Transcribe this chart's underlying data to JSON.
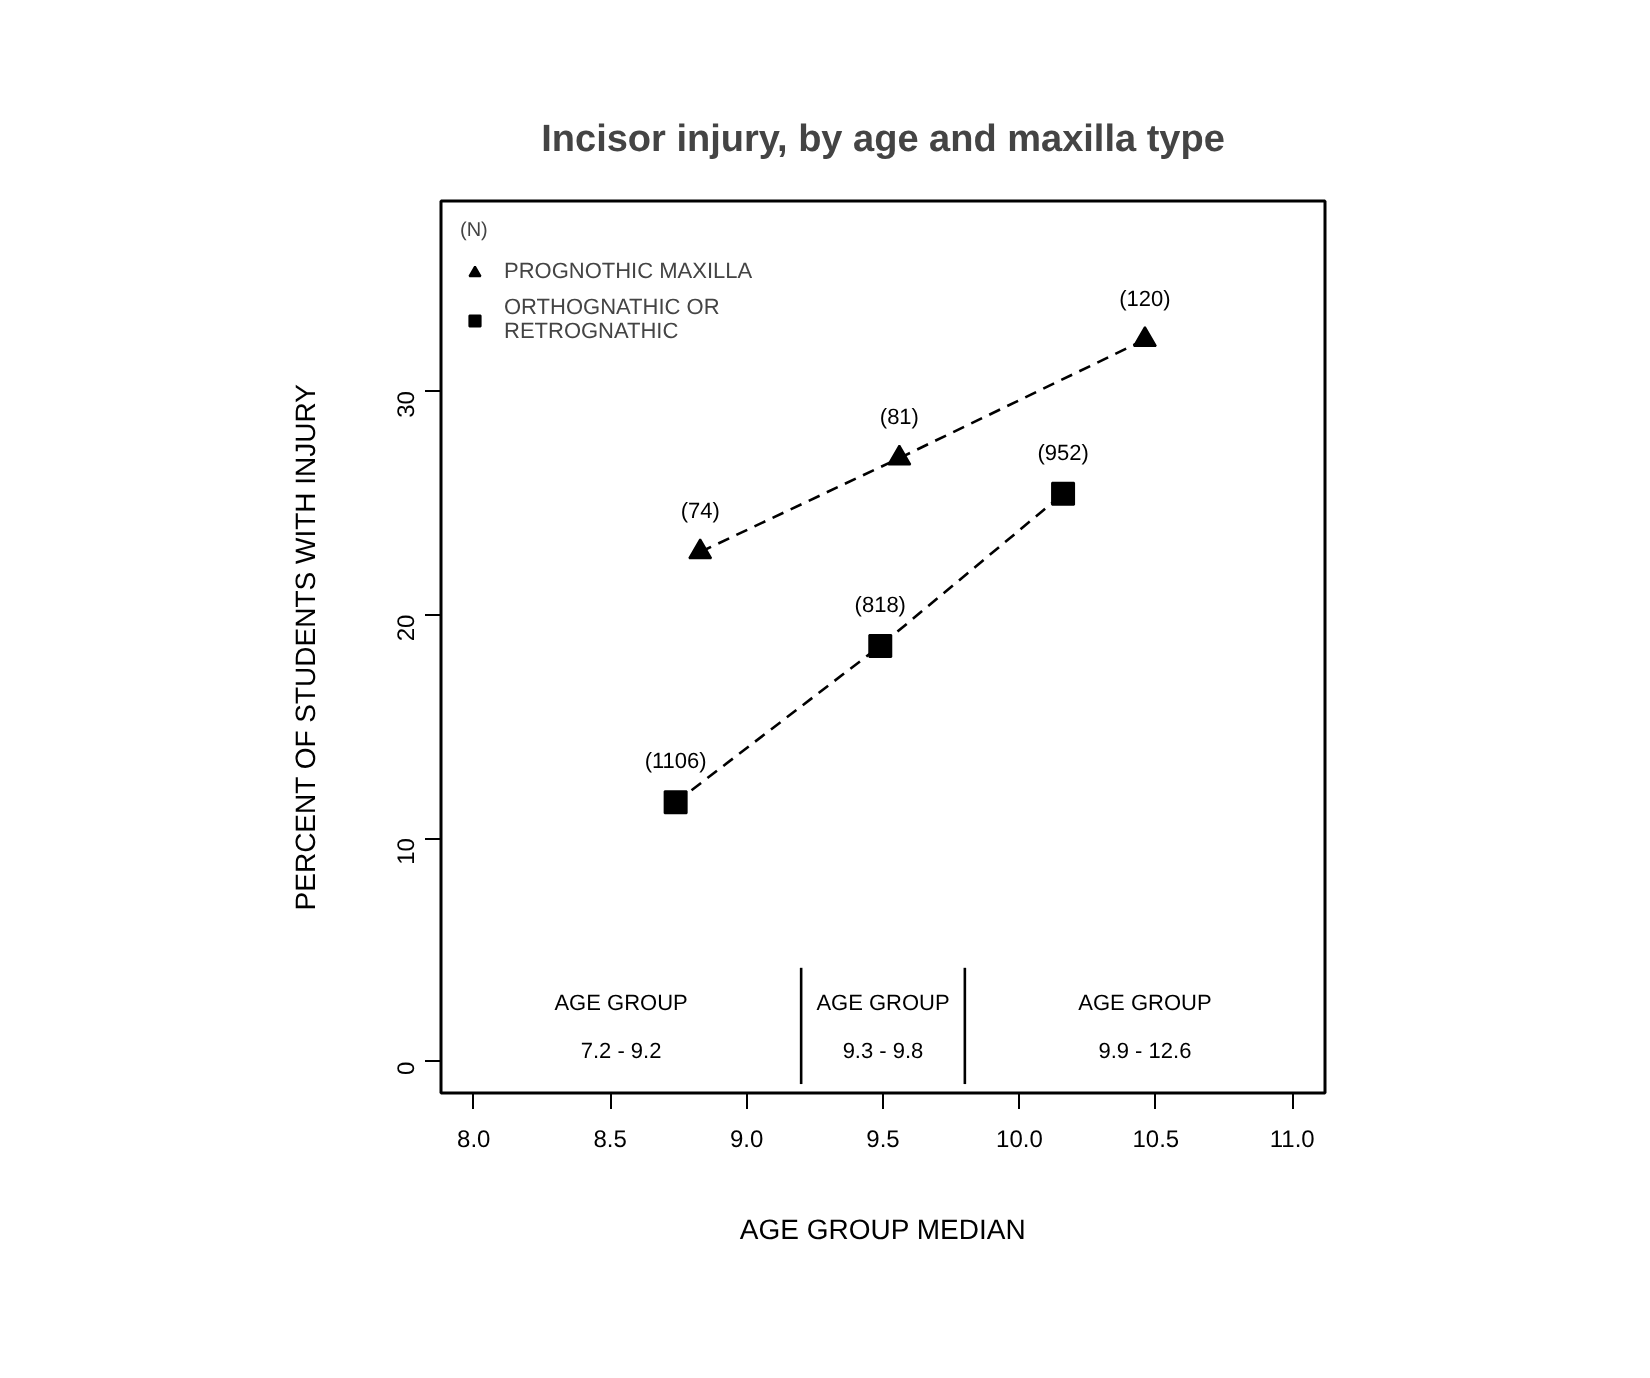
{
  "chart_data": {
    "type": "line",
    "title": "Incisor injury, by age and maxilla type",
    "xlabel": "AGE GROUP MEDIAN",
    "ylabel": "PERCENT OF STUDENTS WITH INJURY",
    "legend_title": "(N)",
    "legend": "top left",
    "line_style": "dashed",
    "grid": false,
    "xlim": [
      7.88,
      11.12
    ],
    "ylim": [
      -1.4,
      38.5
    ],
    "xticks": [
      {
        "value": 8,
        "label": "8.0"
      },
      {
        "value": 8.5,
        "label": "8.5"
      },
      {
        "value": 9,
        "label": "9.0"
      },
      {
        "value": 9.5,
        "label": "9.5"
      },
      {
        "value": 10,
        "label": "10.0"
      },
      {
        "value": 10.5,
        "label": "10.5"
      },
      {
        "value": 11,
        "label": "11.0"
      }
    ],
    "yticks": [
      0,
      10,
      20,
      30
    ],
    "series": [
      {
        "name": "PROGNOTHIC MAXILLA",
        "color": "#000000",
        "marker": "triangle",
        "x": [
          8.83,
          9.56,
          10.46
        ],
        "values": [
          22.8,
          27.0,
          32.3
        ]
      },
      {
        "name": "ORTHOGNATHIC OR\nRETROGNATHIC",
        "color": "#000000",
        "marker": "square",
        "x": [
          8.74,
          9.49,
          10.16
        ],
        "values": [
          11.6,
          18.6,
          25.4
        ]
      }
    ],
    "ref_lines": [
      {
        "axis": "x",
        "value": 9.2,
        "label": null
      },
      {
        "axis": "x",
        "value": 9.8,
        "label": null
      }
    ],
    "annotations": [
      {
        "text": "(74)",
        "x": 8.83,
        "y": 22.8
      },
      {
        "text": "(81)",
        "x": 9.56,
        "y": 27.0
      },
      {
        "text": "(120)",
        "x": 10.46,
        "y": 32.3
      },
      {
        "text": "(1106)",
        "x": 8.74,
        "y": 11.6
      },
      {
        "text": "(818)",
        "x": 9.49,
        "y": 18.6
      },
      {
        "text": "(952)",
        "x": 10.16,
        "y": 25.4
      },
      "AGE GROUP\n7.2 - 9.2",
      "AGE GROUP\n9.3 - 9.8",
      "AGE GROUP\n9.9 - 12.6"
    ]
  }
}
